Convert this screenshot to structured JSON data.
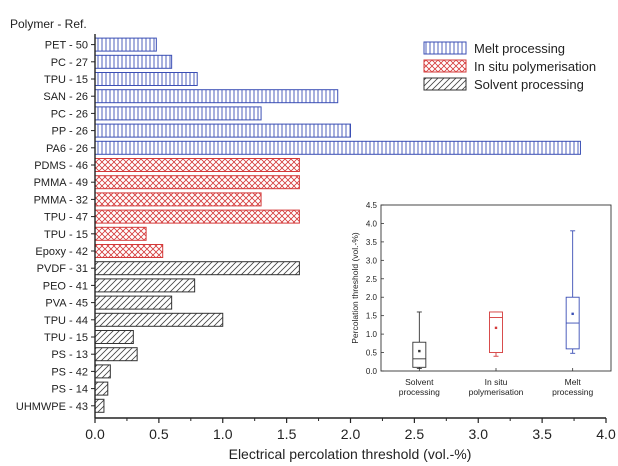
{
  "chart_data": [
    {
      "type": "bar",
      "orientation": "horizontal",
      "header": "Polymer - Ref.",
      "xlabel": "Electrical percolation threshold (vol.-%)",
      "xlim": [
        0,
        4.0
      ],
      "xticks": [
        "0.0",
        "0.5",
        "1.0",
        "1.5",
        "2.0",
        "2.5",
        "3.0",
        "3.5",
        "4.0"
      ],
      "grid": false,
      "legend_position": "top-right",
      "series": [
        {
          "name": "Melt processing",
          "color": "#3b4fb5",
          "pattern": "vertical-lines",
          "categories": [
            "PET - 50",
            "PC - 27",
            "TPU - 15",
            "SAN - 26",
            "PC - 26",
            "PP - 26",
            "PA6 - 26"
          ],
          "values": [
            0.48,
            0.6,
            0.8,
            1.9,
            1.3,
            2.0,
            3.8
          ]
        },
        {
          "name": "In situ polymerisation",
          "color": "#d43a3a",
          "pattern": "crosshatch",
          "categories": [
            "PDMS - 46",
            "PMMA - 49",
            "PMMA - 32",
            "TPU - 47",
            "TPU - 15",
            "Epoxy - 42"
          ],
          "values": [
            1.6,
            1.6,
            1.3,
            1.6,
            0.4,
            0.53
          ]
        },
        {
          "name": "Solvent processing",
          "color": "#333333",
          "pattern": "diagonal-lines",
          "categories": [
            "PVDF - 31",
            "PEO - 41",
            "PVA - 45",
            "TPU - 44",
            "TPU - 15",
            "PS - 13",
            "PS - 42",
            "PS - 14",
            "UHMWPE - 43"
          ],
          "values": [
            1.6,
            0.78,
            0.6,
            1.0,
            0.3,
            0.33,
            0.12,
            0.1,
            0.07
          ]
        }
      ]
    },
    {
      "type": "box",
      "ylabel": "Percolation threshold (vol.-%)",
      "ylim": [
        0,
        4.5
      ],
      "yticks": [
        "0.0",
        "0.5",
        "1.0",
        "1.5",
        "2.0",
        "2.5",
        "3.0",
        "3.5",
        "4.0",
        "4.5"
      ],
      "categories": [
        "Solvent\nprocessing",
        "In situ\npolymerisation",
        "Melt\nprocessing"
      ],
      "boxes": [
        {
          "category": "Solvent processing",
          "color": "#333333",
          "min": 0.07,
          "q1": 0.1,
          "median": 0.33,
          "q3": 0.78,
          "max": 1.6,
          "mean": 0.54
        },
        {
          "category": "In situ polymerisation",
          "color": "#d43a3a",
          "min": 0.4,
          "q1": 0.5,
          "median": 1.45,
          "q3": 1.6,
          "max": 1.6,
          "mean": 1.17
        },
        {
          "category": "Melt processing",
          "color": "#3b4fb5",
          "min": 0.48,
          "q1": 0.6,
          "median": 1.3,
          "q3": 2.0,
          "max": 3.8,
          "mean": 1.55
        }
      ]
    }
  ]
}
